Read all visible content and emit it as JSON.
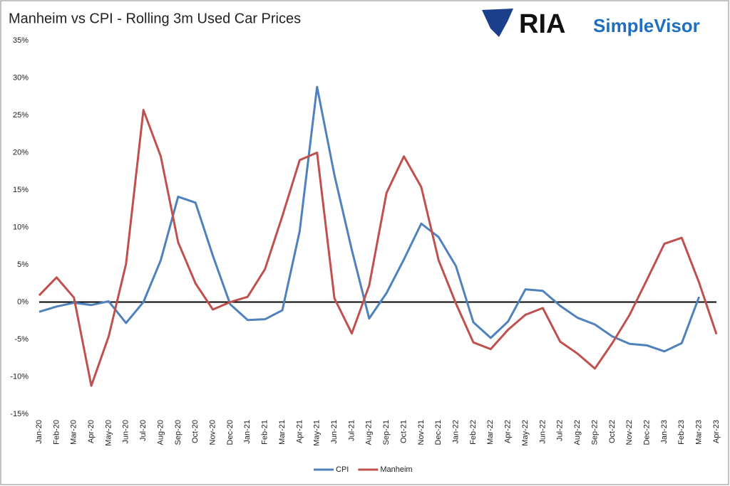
{
  "chart_data": {
    "type": "line",
    "title": "Manheim vs CPI - Rolling 3m Used Car Prices",
    "logo": {
      "brand": "RIA",
      "product": "SimpleVisor"
    },
    "categories": [
      "Jan-20",
      "Feb-20",
      "Mar-20",
      "Apr-20",
      "May-20",
      "Jun-20",
      "Jul-20",
      "Aug-20",
      "Sep-20",
      "Oct-20",
      "Nov-20",
      "Dec-20",
      "Jan-21",
      "Feb-21",
      "Mar-21",
      "Apr-21",
      "May-21",
      "Jun-21",
      "Jul-21",
      "Aug-21",
      "Sep-21",
      "Oct-21",
      "Nov-21",
      "Dec-21",
      "Jan-22",
      "Feb-22",
      "Mar-22",
      "Apr-22",
      "May-22",
      "Jun-22",
      "Jul-22",
      "Aug-22",
      "Sep-22",
      "Oct-22",
      "Nov-22",
      "Dec-22",
      "Jan-23",
      "Feb-23",
      "Mar-23",
      "Apr-23"
    ],
    "series": [
      {
        "name": "CPI",
        "color": "#4f81bd",
        "values": [
          -1.3,
          -0.6,
          -0.1,
          -0.4,
          0.1,
          -2.8,
          0,
          5.6,
          14.1,
          13.3,
          6.2,
          -0.3,
          -2.4,
          -2.3,
          -1.1,
          9.5,
          28.8,
          17,
          7,
          -2.2,
          1.2,
          5.7,
          10.5,
          8.7,
          4.8,
          -2.7,
          -4.8,
          -2.6,
          1.7,
          1.5,
          -0.5,
          -2.1,
          -3,
          -4.6,
          -5.6,
          -5.8,
          -6.6,
          -5.5,
          0.7,
          null
        ]
      },
      {
        "name": "Manheim",
        "color": "#c0504d",
        "values": [
          0.9,
          3.3,
          0.6,
          -11.2,
          -4.6,
          5.1,
          25.7,
          19.5,
          8,
          2.5,
          -1,
          0,
          0.7,
          4.4,
          11.5,
          19,
          20,
          0.5,
          -4.2,
          2.2,
          14.6,
          19.5,
          15.4,
          5.6,
          -0.2,
          -5.4,
          -6.3,
          -3.7,
          -1.7,
          -0.8,
          -5.3,
          -6.9,
          -8.9,
          -5.5,
          -1.7,
          3,
          7.8,
          8.6,
          2.6,
          -4.3
        ]
      }
    ],
    "ylim": [
      -15,
      35
    ],
    "yticks": [
      {
        "value": -15,
        "label": "-15%"
      },
      {
        "value": -10,
        "label": "-10%"
      },
      {
        "value": -5,
        "label": "-5%"
      },
      {
        "value": 0,
        "label": "0%"
      },
      {
        "value": 5,
        "label": "5%"
      },
      {
        "value": 10,
        "label": "10%"
      },
      {
        "value": 15,
        "label": "15%"
      },
      {
        "value": 20,
        "label": "20%"
      },
      {
        "value": 25,
        "label": "25%"
      },
      {
        "value": 30,
        "label": "30%"
      },
      {
        "value": 35,
        "label": "35%"
      }
    ],
    "legend": "bottom",
    "grid": false
  }
}
